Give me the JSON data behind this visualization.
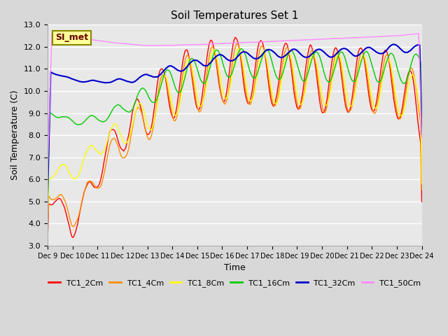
{
  "title": "Soil Temperatures Set 1",
  "xlabel": "Time",
  "ylabel": "Soil Temperature (C)",
  "ylim": [
    3.0,
    13.0
  ],
  "yticks": [
    3.0,
    4.0,
    5.0,
    6.0,
    7.0,
    8.0,
    9.0,
    10.0,
    11.0,
    12.0,
    13.0
  ],
  "xtick_labels": [
    "Dec 9",
    "Dec 10",
    "Dec 11",
    "Dec 12",
    "Dec 13",
    "Dec 14",
    "Dec 15",
    "Dec 16",
    "Dec 17",
    "Dec 18",
    "Dec 19",
    "Dec 20",
    "Dec 21",
    "Dec 22",
    "Dec 23",
    "Dec 24"
  ],
  "legend_labels": [
    "TC1_2Cm",
    "TC1_4Cm",
    "TC1_8Cm",
    "TC1_16Cm",
    "TC1_32Cm",
    "TC1_50Cm"
  ],
  "colors": {
    "TC1_2Cm": "#ff0000",
    "TC1_4Cm": "#ff8c00",
    "TC1_8Cm": "#ffff00",
    "TC1_16Cm": "#00cc00",
    "TC1_32Cm": "#0000cc",
    "TC1_50Cm": "#ff88ff"
  },
  "plot_bg_color": "#e8e8e8",
  "annotation_text": "SI_met",
  "annotation_bg": "#ffff99",
  "annotation_border": "#888800"
}
